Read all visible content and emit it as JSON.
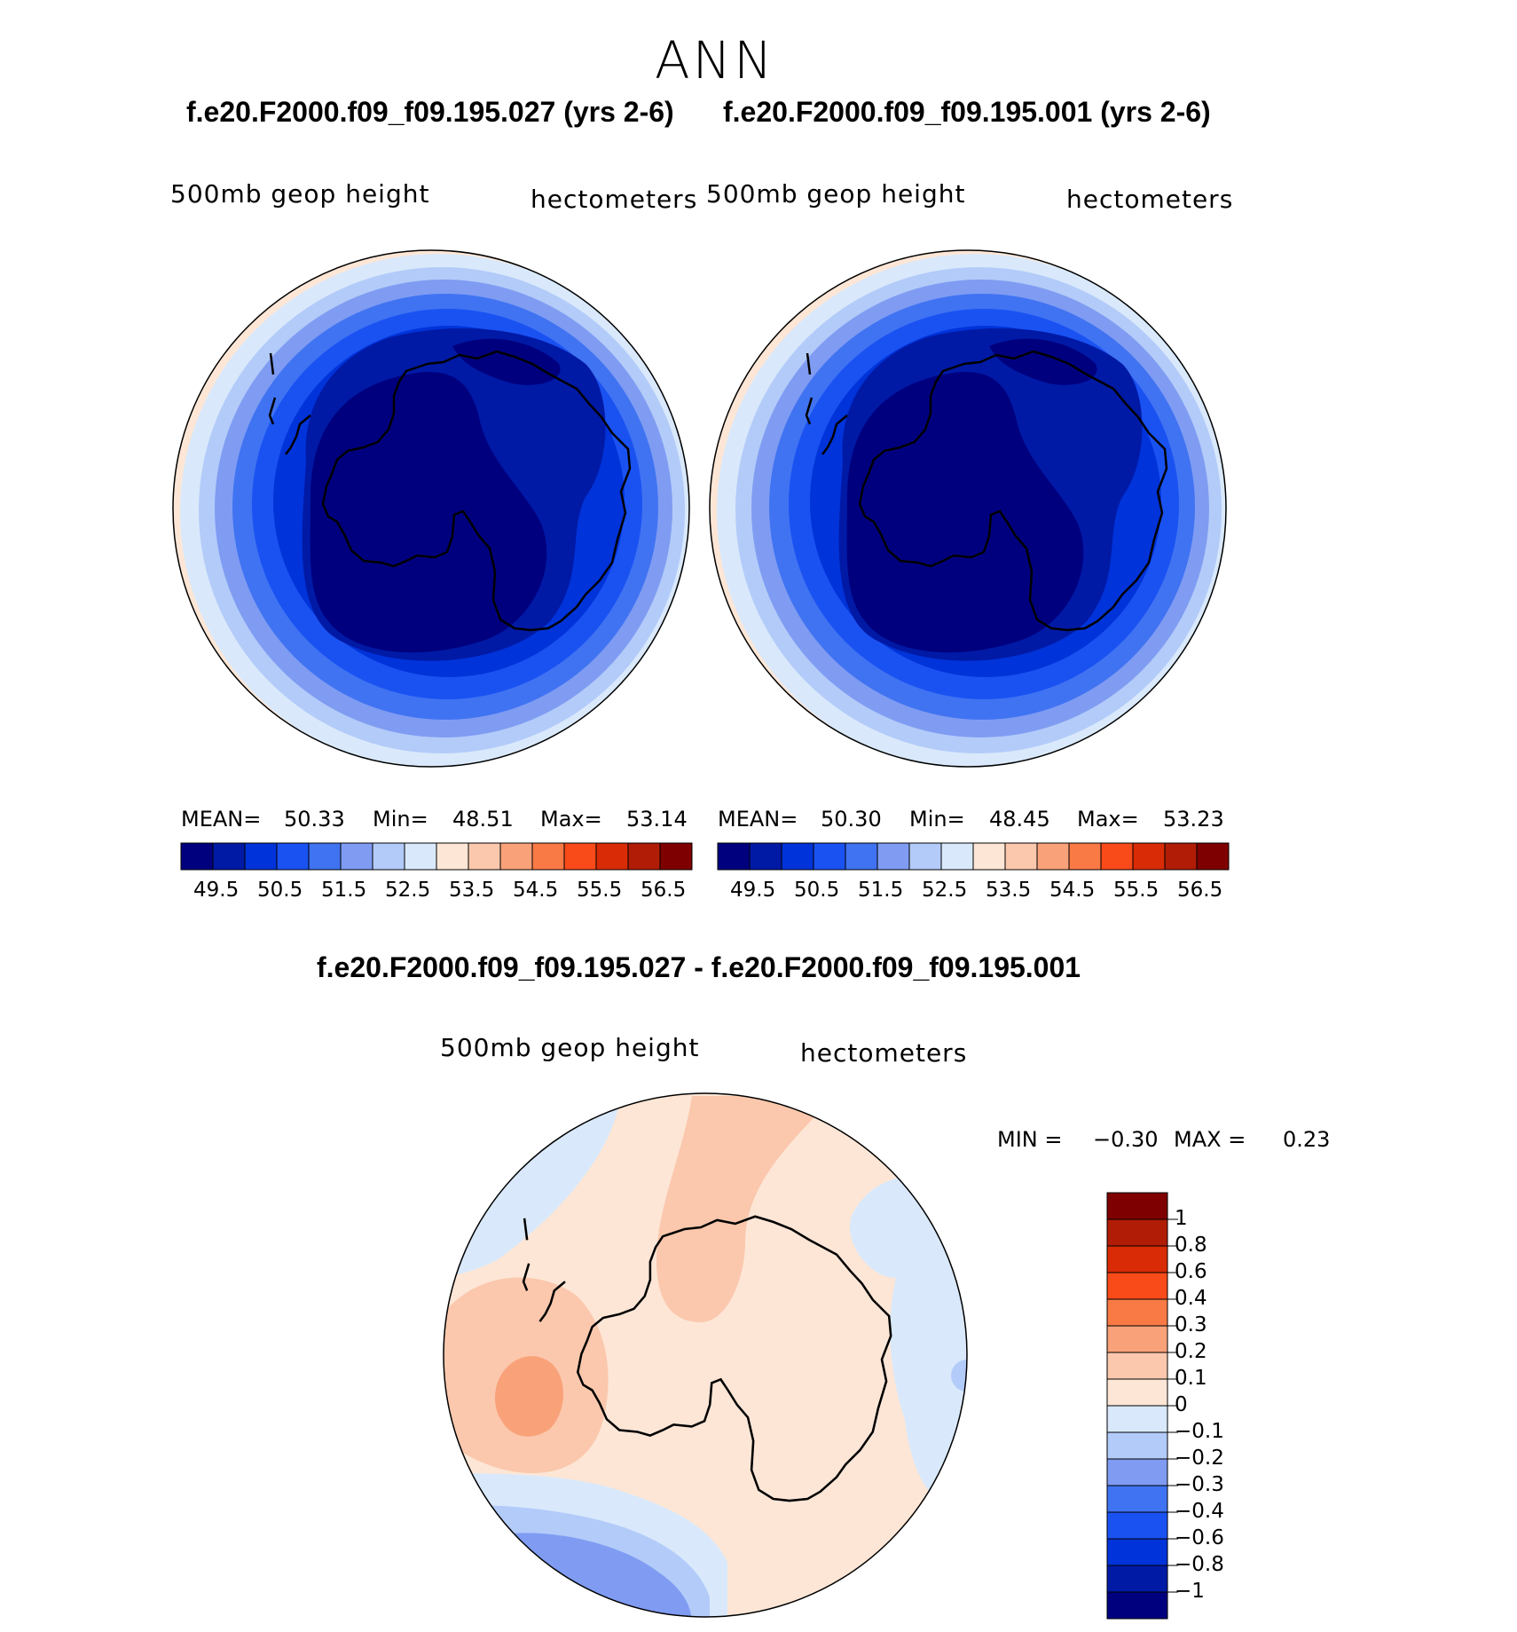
{
  "season": "ANN",
  "colors": {
    "abs_scale": [
      "#00007f",
      "#001aa6",
      "#0033d9",
      "#1a52f2",
      "#4073f2",
      "#7f9cf2",
      "#b3cbf9",
      "#d9e9fb",
      "#fde6d6",
      "#fbc8ad",
      "#f9a27a",
      "#f97a45",
      "#f94a1a",
      "#d92b05",
      "#b01c05",
      "#7f0000"
    ],
    "diff_scale": [
      "#00007f",
      "#001aa6",
      "#0033d9",
      "#1a52f2",
      "#4073f2",
      "#7f9cf2",
      "#b3cbf9",
      "#d9e9fb",
      "#fde6d6",
      "#fbc8ad",
      "#f9a27a",
      "#f97a45",
      "#f94a1a",
      "#d92b05",
      "#b01c05",
      "#7f0000"
    ]
  },
  "panels": [
    {
      "case_title": "f.e20.F2000.f09_f09.195.027 (yrs 2-6)",
      "variable": "500mb geop height",
      "units": "hectometers",
      "mean_label": "MEAN=",
      "mean": "50.33",
      "min_label": "Min=",
      "min": "48.51",
      "max_label": "Max=",
      "max": "53.14",
      "ticks": [
        "49.5",
        "50.5",
        "51.5",
        "52.5",
        "53.5",
        "54.5",
        "55.5",
        "56.5"
      ]
    },
    {
      "case_title": "f.e20.F2000.f09_f09.195.001 (yrs 2-6)",
      "variable": "500mb geop height",
      "units": "hectometers",
      "mean_label": "MEAN=",
      "mean": "50.30",
      "min_label": "Min=",
      "min": "48.45",
      "max_label": "Max=",
      "max": "53.23",
      "ticks": [
        "49.5",
        "50.5",
        "51.5",
        "52.5",
        "53.5",
        "54.5",
        "55.5",
        "56.5"
      ]
    }
  ],
  "diff": {
    "title": "f.e20.F2000.f09_f09.195.027 - f.e20.F2000.f09_f09.195.001",
    "variable": "500mb geop height",
    "units": "hectometers",
    "min_label": "MIN =",
    "min": "−0.30",
    "max_label": "MAX =",
    "max": "0.23",
    "ticks": [
      "1",
      "0.8",
      "0.6",
      "0.4",
      "0.3",
      "0.2",
      "0.1",
      "0",
      "−0.1",
      "−0.2",
      "−0.3",
      "−0.4",
      "−0.6",
      "−0.8",
      "−1"
    ]
  }
}
